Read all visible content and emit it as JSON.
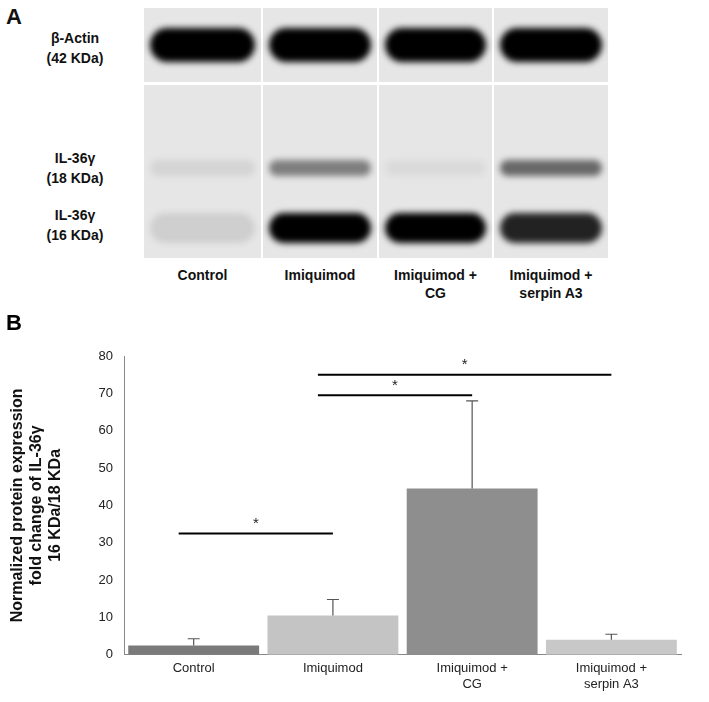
{
  "chart_data": {
    "type": "bar",
    "panel_label": "B",
    "categories": [
      "Control",
      "Imiquimod",
      "Imiquimod + CG",
      "Imiquimod + serpin A3"
    ],
    "values": [
      2.5,
      10.5,
      44.5,
      4.0
    ],
    "errors": [
      1.8,
      4.3,
      23.5,
      1.5
    ],
    "colors": [
      "#7a7a7a",
      "#c4c4c4",
      "#8e8e8e",
      "#c8c8c8"
    ],
    "y_label": [
      "Normalized protein expression",
      "fold change of IL-36γ",
      "16 KDa/18 KDa"
    ],
    "ylim": [
      0,
      80
    ],
    "yticks": [
      0,
      10,
      20,
      30,
      40,
      50,
      60,
      70,
      80
    ],
    "grid": false,
    "significance": [
      {
        "from": "Control",
        "to": "Imiquimod",
        "y": 32.5,
        "label": "*"
      },
      {
        "from": "Imiquimod",
        "to": "Imiquimod + CG",
        "y": 69.5,
        "label": "*"
      },
      {
        "from": "Imiquimod",
        "to": "Imiquimod + serpin A3",
        "y": 75,
        "label": "*"
      }
    ]
  },
  "blot": {
    "panel_label": "A",
    "rows": [
      {
        "name": "β-Actin",
        "size": "(42 KDa)"
      },
      {
        "name": "IL-36γ",
        "size": "(18 KDa)"
      },
      {
        "name": "IL-36γ",
        "size": "(16 KDa)"
      }
    ],
    "lanes": [
      {
        "label": "Control",
        "bands": [
          1.0,
          0.08,
          0.1
        ]
      },
      {
        "label": "Imiquimod",
        "bands": [
          1.0,
          0.45,
          1.0
        ]
      },
      {
        "label": "Imiquimod + CG",
        "bands": [
          1.0,
          0.05,
          1.0
        ]
      },
      {
        "label": "Imiquimod + serpin A3",
        "bands": [
          1.0,
          0.55,
          0.85
        ]
      }
    ]
  }
}
